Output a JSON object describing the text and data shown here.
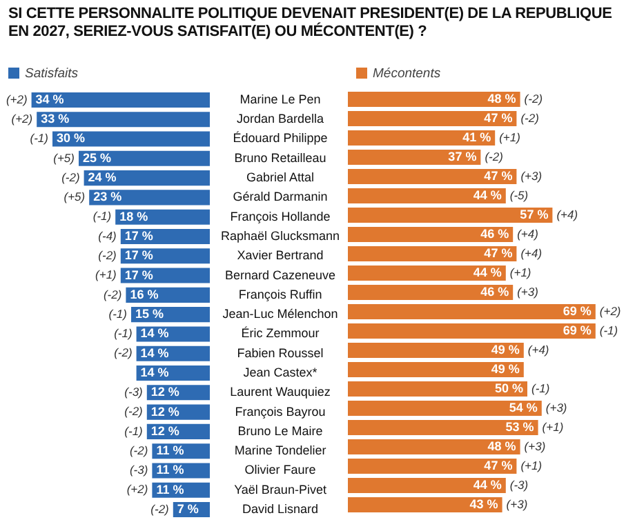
{
  "chart_data": [
    {
      "type": "bar",
      "orientation": "horizontal",
      "title": "SI CETTE PERSONNALITE POLITIQUE DEVENAIT PRESIDENT(E) DE LA REPUBLIQUE EN 2027, SERIEZ-VOUS SATISFAIT(E) OU MÉCONTENT(E) ?",
      "categories": [
        "Marine Le Pen",
        "Jordan Bardella",
        "Édouard Philippe",
        "Bruno Retailleau",
        "Gabriel Attal",
        "Gérald Darmanin",
        "François Hollande",
        "Raphaël Glucksmann",
        "Xavier Bertrand",
        "Bernard Cazeneuve",
        "François Ruffin",
        "Jean-Luc Mélenchon",
        "Éric Zemmour",
        "Fabien Roussel",
        "Jean Castex*",
        "Laurent Wauquiez",
        "François Bayrou",
        "Bruno Le Maire",
        "Marine Tondelier",
        "Olivier Faure",
        "Yaël Braun-Pivet",
        "David Lisnard"
      ],
      "series": [
        {
          "name": "Satisfaits",
          "color": "#2e6bb3",
          "values": [
            34,
            33,
            30,
            25,
            24,
            23,
            18,
            17,
            17,
            17,
            16,
            15,
            14,
            14,
            14,
            12,
            12,
            12,
            11,
            11,
            11,
            7
          ],
          "value_labels": [
            "34 %",
            "33 %",
            "30 %",
            "25 %",
            "24 %",
            "23 %",
            "18 %",
            "17 %",
            "17 %",
            "17 %",
            "16 %",
            "15 %",
            "14 %",
            "14 %",
            "14 %",
            "12 %",
            "12 %",
            "12 %",
            "11 %",
            "11 %",
            "11 %",
            "7 %"
          ]
        }
      ],
      "tick_labels": "y",
      "grid": false,
      "legend": "top left",
      "annotations": [
        {
          "text": "(+2)",
          "x": 34,
          "y": "Marine Le Pen"
        },
        {
          "text": "(+2)",
          "x": 33,
          "y": "Jordan Bardella"
        },
        {
          "text": "(-1)",
          "x": 30,
          "y": "Édouard Philippe"
        },
        {
          "text": "(+5)",
          "x": 25,
          "y": "Bruno Retailleau"
        },
        {
          "text": "(-2)",
          "x": 24,
          "y": "Gabriel Attal"
        },
        {
          "text": "(+5)",
          "x": 23,
          "y": "Gérald Darmanin"
        },
        {
          "text": "(-1)",
          "x": 18,
          "y": "François Hollande"
        },
        {
          "text": "(-4)",
          "x": 17,
          "y": "Raphaël Glucksmann"
        },
        {
          "text": "(-2)",
          "x": 17,
          "y": "Xavier Bertrand"
        },
        {
          "text": "(+1)",
          "x": 17,
          "y": "Bernard Cazeneuve"
        },
        {
          "text": "(-2)",
          "x": 16,
          "y": "François Ruffin"
        },
        {
          "text": "(-1)",
          "x": 15,
          "y": "Jean-Luc Mélenchon"
        },
        {
          "text": "(-1)",
          "x": 14,
          "y": "Éric Zemmour"
        },
        {
          "text": "(-2)",
          "x": 14,
          "y": "Fabien Roussel"
        },
        {
          "text": "(-3)",
          "x": 12,
          "y": "Laurent Wauquiez"
        },
        {
          "text": "(-2)",
          "x": 12,
          "y": "François Bayrou"
        },
        {
          "text": "(-1)",
          "x": 12,
          "y": "Bruno Le Maire"
        },
        {
          "text": "(-2)",
          "x": 11,
          "y": "Marine Tondelier"
        },
        {
          "text": "(-3)",
          "x": 11,
          "y": "Olivier Faure"
        },
        {
          "text": "(+2)",
          "x": 11,
          "y": "Yaël Braun-Pivet"
        },
        {
          "text": "(-2)",
          "x": 7,
          "y": "David Lisnard"
        }
      ]
    },
    {
      "type": "bar",
      "orientation": "horizontal",
      "categories": [
        "Marine Le Pen",
        "Jordan Bardella",
        "Édouard Philippe",
        "Bruno Retailleau",
        "Gabriel Attal",
        "Gérald Darmanin",
        "François Hollande",
        "Raphaël Glucksmann",
        "Xavier Bertrand",
        "Bernard Cazeneuve",
        "François Ruffin",
        "Jean-Luc Mélenchon",
        "Éric Zemmour",
        "Fabien Roussel",
        "Jean Castex*",
        "Laurent Wauquiez",
        "François Bayrou",
        "Bruno Le Maire",
        "Marine Tondelier",
        "Olivier Faure",
        "Yaël Braun-Pivet",
        "David Lisnard"
      ],
      "series": [
        {
          "name": "Mécontents",
          "color": "#e0782f",
          "values": [
            48,
            47,
            41,
            37,
            47,
            44,
            57,
            46,
            47,
            44,
            46,
            69,
            69,
            49,
            49,
            50,
            54,
            53,
            48,
            47,
            44,
            43
          ],
          "value_labels": [
            "48 %",
            "47 %",
            "41 %",
            "37 %",
            "47 %",
            "44 %",
            "57 %",
            "46 %",
            "47 %",
            "44 %",
            "46 %",
            "69 %",
            "69 %",
            "49 %",
            "49 %",
            "50 %",
            "54 %",
            "53 %",
            "48 %",
            "47 %",
            "44 %",
            "43 %"
          ]
        }
      ],
      "tick_labels": false,
      "grid": false,
      "legend": "top left",
      "annotations": [
        {
          "text": "(-2)",
          "x": 48,
          "y": "Marine Le Pen"
        },
        {
          "text": "(-2)",
          "x": 47,
          "y": "Jordan Bardella"
        },
        {
          "text": "(+1)",
          "x": 41,
          "y": "Édouard Philippe"
        },
        {
          "text": "(-2)",
          "x": 37,
          "y": "Bruno Retailleau"
        },
        {
          "text": "(+3)",
          "x": 47,
          "y": "Gabriel Attal"
        },
        {
          "text": "(-5)",
          "x": 44,
          "y": "Gérald Darmanin"
        },
        {
          "text": "(+4)",
          "x": 57,
          "y": "François Hollande"
        },
        {
          "text": "(+4)",
          "x": 46,
          "y": "Raphaël Glucksmann"
        },
        {
          "text": "(+4)",
          "x": 47,
          "y": "Xavier Bertrand"
        },
        {
          "text": "(+1)",
          "x": 44,
          "y": "Bernard Cazeneuve"
        },
        {
          "text": "(+3)",
          "x": 46,
          "y": "François Ruffin"
        },
        {
          "text": "(+2)",
          "x": 69,
          "y": "Jean-Luc Mélenchon"
        },
        {
          "text": "(-1)",
          "x": 69,
          "y": "Éric Zemmour"
        },
        {
          "text": "(+4)",
          "x": 49,
          "y": "Fabien Roussel"
        },
        {
          "text": "(-1)",
          "x": 50,
          "y": "Laurent Wauquiez"
        },
        {
          "text": "(+3)",
          "x": 54,
          "y": "François Bayrou"
        },
        {
          "text": "(+1)",
          "x": 53,
          "y": "Bruno Le Maire"
        },
        {
          "text": "(+3)",
          "x": 48,
          "y": "Marine Tondelier"
        },
        {
          "text": "(+1)",
          "x": 47,
          "y": "Olivier Faure"
        },
        {
          "text": "(-3)",
          "x": 44,
          "y": "Yaël Braun-Pivet"
        },
        {
          "text": "(+3)",
          "x": 43,
          "y": "David Lisnard"
        }
      ]
    }
  ]
}
